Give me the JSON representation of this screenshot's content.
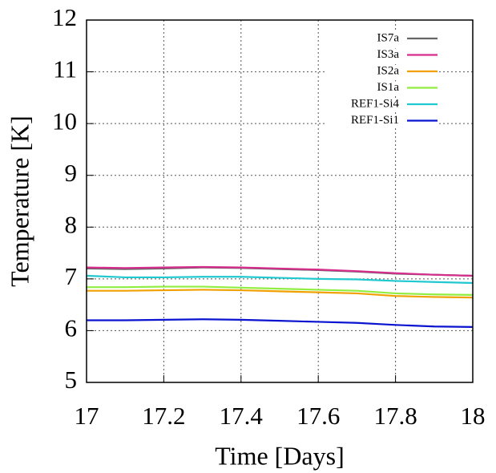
{
  "chart_data": {
    "type": "line",
    "xlabel": "Time [Days]",
    "ylabel": "Temperature [K]",
    "x": [
      17,
      17.1,
      17.2,
      17.3,
      17.4,
      17.5,
      17.6,
      17.7,
      17.8,
      17.9,
      18
    ],
    "series": [
      {
        "name": "IS7a",
        "color": "#666666",
        "values": [
          7.2,
          7.19,
          7.2,
          7.22,
          7.21,
          7.19,
          7.17,
          7.14,
          7.1,
          7.08,
          7.06
        ]
      },
      {
        "name": "IS3a",
        "color": "#d62d8c",
        "values": [
          7.22,
          7.21,
          7.22,
          7.23,
          7.22,
          7.2,
          7.18,
          7.15,
          7.11,
          7.08,
          7.06
        ]
      },
      {
        "name": "IS2a",
        "color": "#f0a000",
        "values": [
          6.77,
          6.77,
          6.78,
          6.79,
          6.78,
          6.76,
          6.74,
          6.72,
          6.67,
          6.65,
          6.64
        ]
      },
      {
        "name": "IS1a",
        "color": "#90ee40",
        "values": [
          6.84,
          6.84,
          6.85,
          6.85,
          6.83,
          6.81,
          6.79,
          6.77,
          6.72,
          6.7,
          6.69
        ]
      },
      {
        "name": "REF1-Si4",
        "color": "#20c8d0",
        "values": [
          7.06,
          7.03,
          7.03,
          7.04,
          7.04,
          7.02,
          7.0,
          6.99,
          6.96,
          6.94,
          6.92
        ]
      },
      {
        "name": "REF1-Si1",
        "color": "#0a14d0",
        "values": [
          6.2,
          6.2,
          6.21,
          6.22,
          6.21,
          6.19,
          6.17,
          6.15,
          6.11,
          6.08,
          6.07
        ]
      }
    ],
    "xlim": [
      17,
      18
    ],
    "xticks": [
      17,
      17.2,
      17.4,
      17.6,
      17.8,
      18
    ],
    "ylim": [
      5,
      12
    ],
    "yticks": [
      5,
      6,
      7,
      8,
      9,
      10,
      11,
      12
    ],
    "grid": true,
    "legend": "top-right"
  }
}
